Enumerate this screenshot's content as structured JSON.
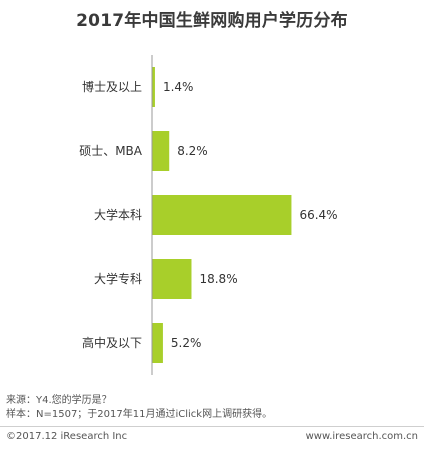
{
  "title": "2017年中国生鲜网购用户学历分布",
  "chart_data": {
    "type": "bar",
    "orientation": "horizontal",
    "title": "2017年中国生鲜网购用户学历分布",
    "categories": [
      "博士及以上",
      "硕士、MBA",
      "大学本科",
      "大学专科",
      "高中及以下"
    ],
    "values": [
      1.4,
      8.2,
      66.4,
      18.8,
      5.2
    ],
    "value_labels": [
      "1.4%",
      "8.2%",
      "66.4%",
      "18.8%",
      "5.2%"
    ],
    "unit": "%",
    "xlim": [
      0,
      100
    ],
    "bar_color": "#a8cf2a",
    "axis_color": "#9a9a9a",
    "grid": false,
    "legend": "none"
  },
  "notes": {
    "source": "来源：Y4.您的学历是？",
    "sample": "样本：N=1507；于2017年11月通过iClick网上调研获得。"
  },
  "footer": {
    "copyright": "©2017.12 iResearch Inc",
    "website": "www.iresearch.com.cn"
  }
}
